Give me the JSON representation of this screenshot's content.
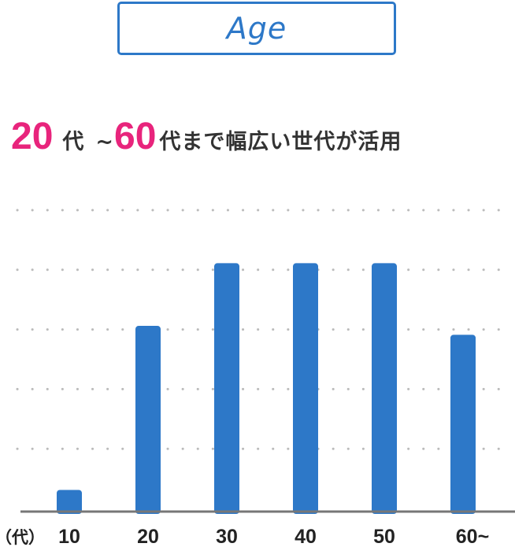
{
  "badge": {
    "label": "Age"
  },
  "headline": {
    "num_start": "20",
    "unit_start": "代",
    "tilde": "~",
    "num_end": "60",
    "rest": "代まで幅広い世代が活用"
  },
  "colors": {
    "bar": "#2d78c8",
    "accent": "#e8247c",
    "grid": "#bbbbbb",
    "axis": "#777777",
    "text": "#333333"
  },
  "chart_data": {
    "type": "bar",
    "categories": [
      "10",
      "20",
      "30",
      "40",
      "50",
      "60~"
    ],
    "values": [
      7,
      62,
      83,
      83,
      83,
      59
    ],
    "unit_label": "（代）",
    "ylim": [
      0,
      100
    ],
    "grid": true,
    "grid_values": [
      20,
      40,
      60,
      80,
      100
    ]
  }
}
